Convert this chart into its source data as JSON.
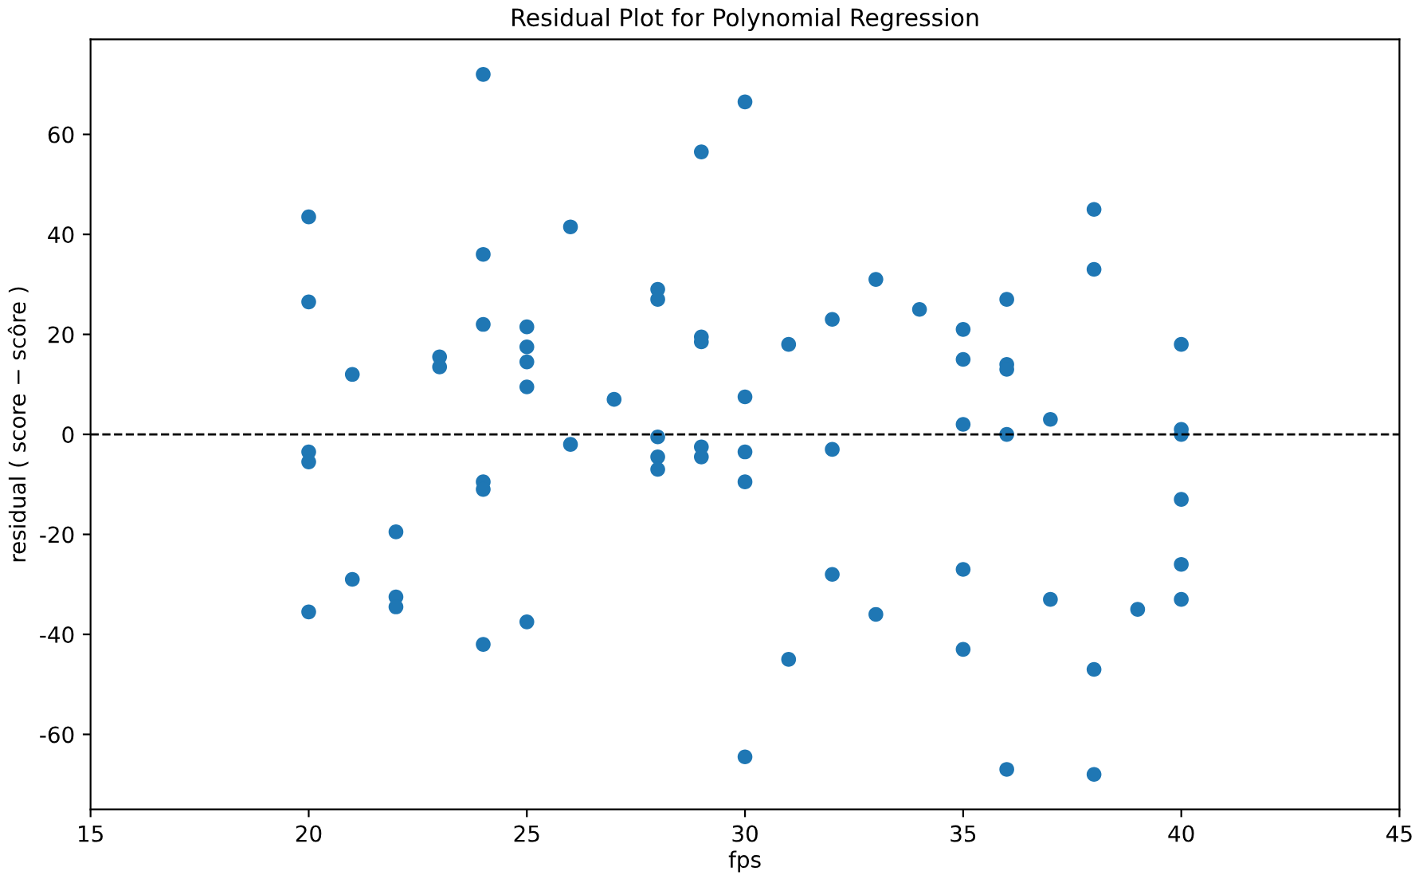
{
  "chart_data": {
    "type": "scatter",
    "title": "Residual Plot for Polynomial Regression",
    "xlabel": "fps",
    "ylabel": "residual ( score − scôre )",
    "series": [
      {
        "color": "#1f77b4",
        "x": [
          20,
          20,
          20,
          20,
          20,
          21,
          21,
          22,
          22,
          22,
          23,
          23,
          24,
          24,
          24,
          24,
          24,
          24,
          25,
          25,
          25,
          25,
          25,
          26,
          26,
          27,
          28,
          28,
          28,
          28,
          28,
          29,
          29,
          29,
          29,
          29,
          30,
          30,
          30,
          30,
          30,
          31,
          31,
          32,
          32,
          32,
          33,
          33,
          34,
          35,
          35,
          35,
          35,
          35,
          36,
          36,
          36,
          36,
          36,
          37,
          37,
          38,
          38,
          38,
          38,
          39,
          40,
          40,
          40,
          40,
          40,
          40
        ],
        "values": [
          43.5,
          26.5,
          -3.5,
          -5.5,
          -35.5,
          12,
          -29,
          -19.5,
          -32.5,
          -34.5,
          15.5,
          13.5,
          72,
          36,
          22,
          -9.5,
          -11,
          -42,
          21.5,
          17.5,
          14.5,
          9.5,
          -37.5,
          41.5,
          -2,
          7,
          29,
          27,
          -0.5,
          -4.5,
          -7,
          56.5,
          19.5,
          18.5,
          -2.5,
          -4.5,
          66.5,
          7.5,
          -3.5,
          -9.5,
          -64.5,
          18,
          -45,
          23,
          -3,
          -28,
          31,
          -36,
          25,
          21,
          15,
          2,
          -27,
          -43,
          27,
          14,
          13,
          0,
          -67,
          3,
          -33,
          45,
          33,
          -47,
          -68,
          -35,
          18,
          1,
          0,
          -13,
          -26,
          -33
        ]
      }
    ],
    "marker": "circle",
    "grid": false,
    "xlim": [
      15,
      45
    ],
    "xticks": [
      15,
      20,
      25,
      30,
      35,
      40,
      45
    ],
    "ylim": [
      -75,
      79
    ],
    "yticks": [
      -60,
      -40,
      -20,
      0,
      20,
      40,
      60
    ],
    "ref_lines": [
      {
        "axis": "y",
        "value": 0,
        "color": "#000000",
        "line_style": "dashed"
      }
    ]
  }
}
